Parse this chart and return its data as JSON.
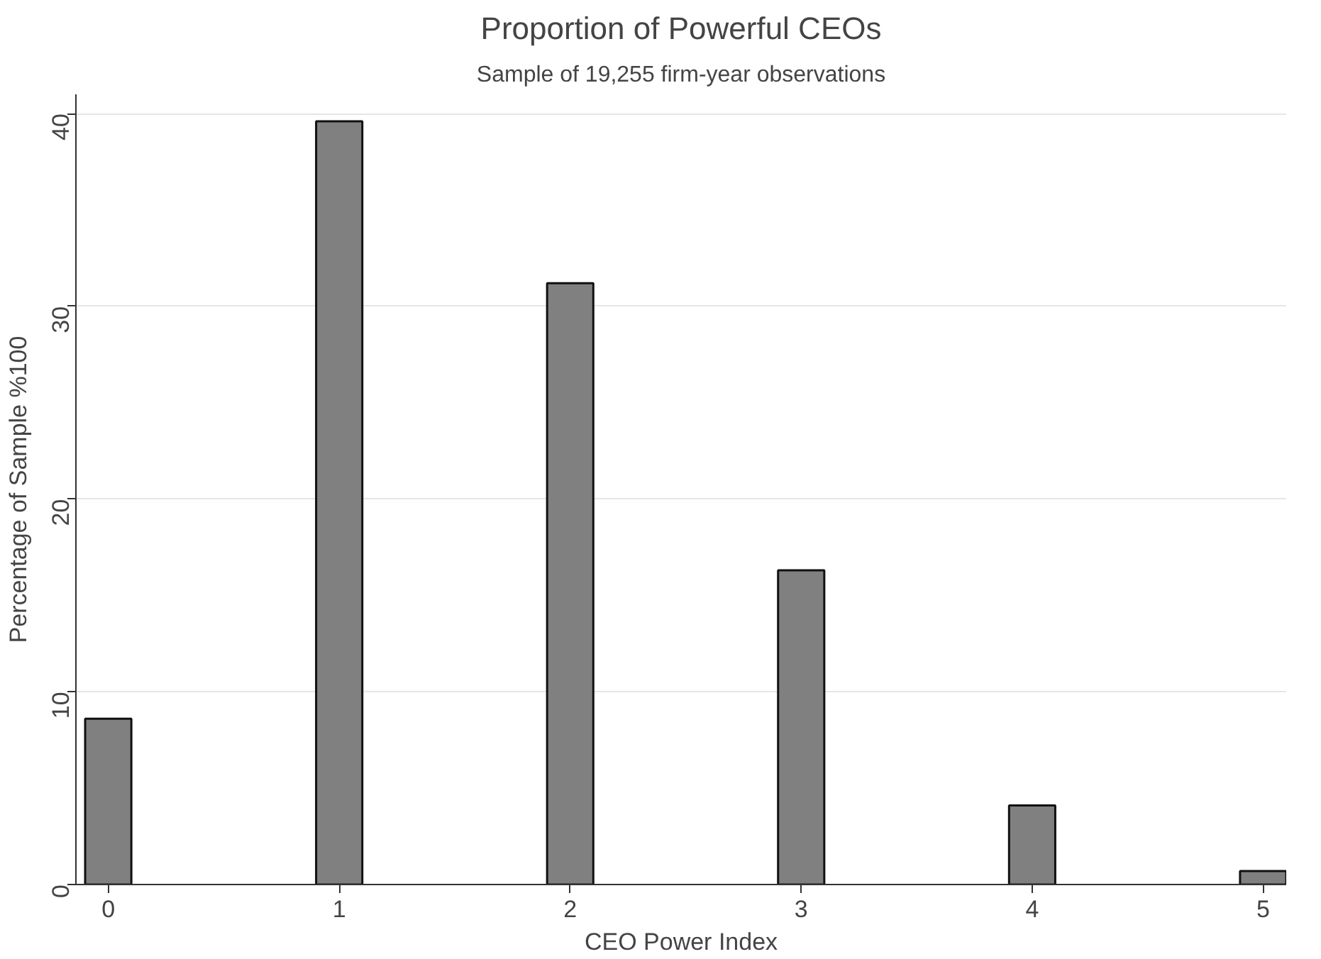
{
  "chart_data": {
    "type": "bar",
    "title": "Proportion of Powerful CEOs",
    "subtitle": "Sample of 19,255 firm-year observations",
    "xlabel": "CEO Power Index",
    "ylabel": "Percentage of Sample %100",
    "x": [
      0,
      1,
      2,
      3,
      4,
      5
    ],
    "values": [
      8.6,
      39.6,
      31.2,
      16.3,
      4.1,
      0.7
    ],
    "color": "#808080",
    "xlim": [
      -0.14,
      5.1
    ],
    "xticks": [
      0,
      1,
      2,
      3,
      4,
      5
    ],
    "ylim": [
      0,
      41
    ],
    "yticks": [
      0,
      10,
      20,
      30,
      40
    ],
    "grid": "y"
  }
}
